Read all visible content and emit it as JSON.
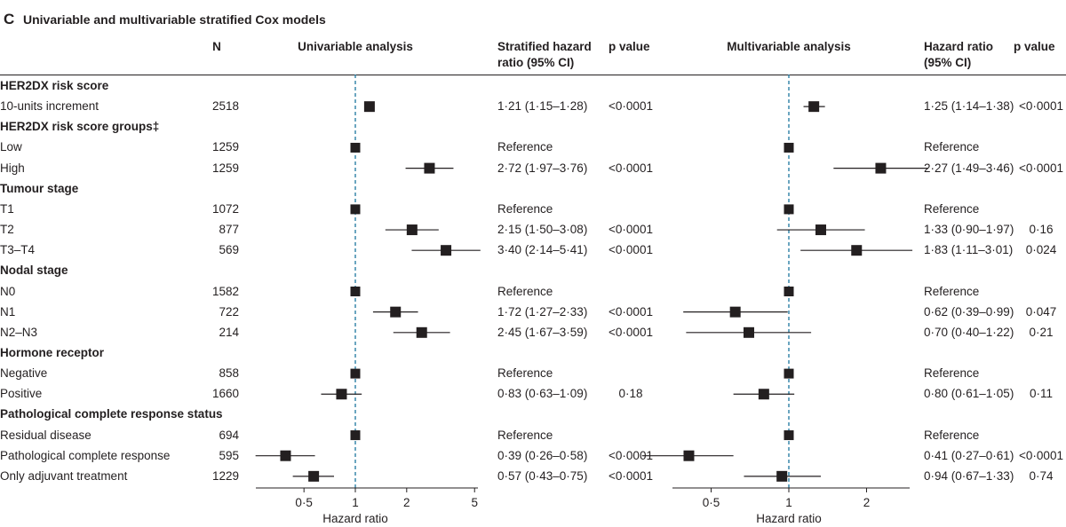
{
  "panel": {
    "letter": "C",
    "title": "Univariable and multivariable stratified Cox models"
  },
  "headers": {
    "n": "N",
    "uni_analysis": "Univariable analysis",
    "uni_hr_line1": "Stratified hazard",
    "uni_hr_line2": "ratio (95% CI)",
    "uni_p": "p value",
    "multi_analysis": "Multivariable analysis",
    "multi_hr_line1": "Hazard ratio",
    "multi_hr_line2": "(95% CI)",
    "multi_p": "p value"
  },
  "rows": [
    {
      "label": "HER2DX risk score",
      "group": true,
      "n": "",
      "uni_text": "",
      "uni_p": "",
      "multi_text": "",
      "multi_p": ""
    },
    {
      "label": "10-units increment",
      "group": false,
      "n": "2518",
      "uni_text": "1·21 (1·15–1·28)",
      "uni_p": "<0·0001",
      "multi_text": "1·25 (1·14–1·38)",
      "multi_p": "<0·0001"
    },
    {
      "label": "HER2DX risk score groups‡",
      "group": true,
      "n": "",
      "uni_text": "",
      "uni_p": "",
      "multi_text": "",
      "multi_p": ""
    },
    {
      "label": "Low",
      "group": false,
      "n": "1259",
      "uni_text": "Reference",
      "uni_p": "",
      "multi_text": "Reference",
      "multi_p": ""
    },
    {
      "label": "High",
      "group": false,
      "n": "1259",
      "uni_text": "2·72 (1·97–3·76)",
      "uni_p": "<0·0001",
      "multi_text": "2·27 (1·49–3·46)",
      "multi_p": "<0·0001"
    },
    {
      "label": "Tumour stage",
      "group": true,
      "n": "",
      "uni_text": "",
      "uni_p": "",
      "multi_text": "",
      "multi_p": ""
    },
    {
      "label": "T1",
      "group": false,
      "n": "1072",
      "uni_text": "Reference",
      "uni_p": "",
      "multi_text": "Reference",
      "multi_p": ""
    },
    {
      "label": "T2",
      "group": false,
      "n": "877",
      "uni_text": "2·15 (1·50–3·08)",
      "uni_p": "<0·0001",
      "multi_text": "1·33 (0·90–1·97)",
      "multi_p": "0·16"
    },
    {
      "label": "T3–T4",
      "group": false,
      "n": "569",
      "uni_text": "3·40 (2·14–5·41)",
      "uni_p": "<0·0001",
      "multi_text": "1·83 (1·11–3·01)",
      "multi_p": "0·024"
    },
    {
      "label": "Nodal stage",
      "group": true,
      "n": "",
      "uni_text": "",
      "uni_p": "",
      "multi_text": "",
      "multi_p": ""
    },
    {
      "label": "N0",
      "group": false,
      "n": "1582",
      "uni_text": "Reference",
      "uni_p": "",
      "multi_text": "Reference",
      "multi_p": ""
    },
    {
      "label": "N1",
      "group": false,
      "n": "722",
      "uni_text": "1·72 (1·27–2·33)",
      "uni_p": "<0·0001",
      "multi_text": "0·62 (0·39–0·99)",
      "multi_p": "0·047"
    },
    {
      "label": "N2–N3",
      "group": false,
      "n": "214",
      "uni_text": "2·45 (1·67–3·59)",
      "uni_p": "<0·0001",
      "multi_text": "0·70 (0·40–1·22)",
      "multi_p": "0·21"
    },
    {
      "label": "Hormone receptor",
      "group": true,
      "n": "",
      "uni_text": "",
      "uni_p": "",
      "multi_text": "",
      "multi_p": ""
    },
    {
      "label": "Negative",
      "group": false,
      "n": "858",
      "uni_text": "Reference",
      "uni_p": "",
      "multi_text": "Reference",
      "multi_p": ""
    },
    {
      "label": "Positive",
      "group": false,
      "n": "1660",
      "uni_text": "0·83 (0·63–1·09)",
      "uni_p": "0·18",
      "multi_text": "0·80 (0·61–1·05)",
      "multi_p": "0·11"
    },
    {
      "label": "Pathological complete response status",
      "group": true,
      "n": "",
      "uni_text": "",
      "uni_p": "",
      "multi_text": "",
      "multi_p": ""
    },
    {
      "label": "Residual disease",
      "group": false,
      "n": "694",
      "uni_text": "Reference",
      "uni_p": "",
      "multi_text": "Reference",
      "multi_p": ""
    },
    {
      "label": "Pathological complete response",
      "group": false,
      "n": "595",
      "uni_text": "0·39 (0·26–0·58)",
      "uni_p": "<0·0001",
      "multi_text": "0·41 (0·27–0·61)",
      "multi_p": "<0·0001"
    },
    {
      "label": "Only adjuvant treatment",
      "group": false,
      "n": "1229",
      "uni_text": "0·57 (0·43–0·75)",
      "uni_p": "<0·0001",
      "multi_text": "0·94 (0·67–1·33)",
      "multi_p": "0·74"
    }
  ],
  "chart_data": [
    {
      "type": "forest",
      "title": "Univariable analysis",
      "xlabel": "Hazard ratio",
      "xscale": "log",
      "xlim": [
        0.3,
        5.2
      ],
      "reference_line": 1,
      "xticks": [
        0.5,
        1,
        2,
        5
      ],
      "xtick_labels": [
        "0·5",
        "1",
        "2",
        "5"
      ],
      "points": [
        {
          "row": "10-units increment",
          "hr": 1.21,
          "lo": 1.15,
          "hi": 1.28
        },
        {
          "row": "Low",
          "hr": 1.0,
          "lo": null,
          "hi": null
        },
        {
          "row": "High",
          "hr": 2.72,
          "lo": 1.97,
          "hi": 3.76
        },
        {
          "row": "T1",
          "hr": 1.0,
          "lo": null,
          "hi": null
        },
        {
          "row": "T2",
          "hr": 2.15,
          "lo": 1.5,
          "hi": 3.08
        },
        {
          "row": "T3–T4",
          "hr": 3.4,
          "lo": 2.14,
          "hi": 5.41
        },
        {
          "row": "N0",
          "hr": 1.0,
          "lo": null,
          "hi": null
        },
        {
          "row": "N1",
          "hr": 1.72,
          "lo": 1.27,
          "hi": 2.33
        },
        {
          "row": "N2–N3",
          "hr": 2.45,
          "lo": 1.67,
          "hi": 3.59
        },
        {
          "row": "Negative",
          "hr": 1.0,
          "lo": null,
          "hi": null
        },
        {
          "row": "Positive",
          "hr": 0.83,
          "lo": 0.63,
          "hi": 1.09
        },
        {
          "row": "Residual disease",
          "hr": 1.0,
          "lo": null,
          "hi": null
        },
        {
          "row": "Pathological complete response",
          "hr": 0.39,
          "lo": 0.26,
          "hi": 0.58
        },
        {
          "row": "Only adjuvant treatment",
          "hr": 0.57,
          "lo": 0.43,
          "hi": 0.75
        }
      ]
    },
    {
      "type": "forest",
      "title": "Multivariable analysis",
      "xlabel": "Hazard ratio",
      "xscale": "log",
      "xlim": [
        0.23,
        3.4
      ],
      "reference_line": 1,
      "xticks": [
        0.5,
        1,
        2
      ],
      "xtick_labels": [
        "0·5",
        "1",
        "2"
      ],
      "points": [
        {
          "row": "10-units increment",
          "hr": 1.25,
          "lo": 1.14,
          "hi": 1.38
        },
        {
          "row": "Low",
          "hr": 1.0,
          "lo": null,
          "hi": null
        },
        {
          "row": "High",
          "hr": 2.27,
          "lo": 1.49,
          "hi": 3.46
        },
        {
          "row": "T1",
          "hr": 1.0,
          "lo": null,
          "hi": null
        },
        {
          "row": "T2",
          "hr": 1.33,
          "lo": 0.9,
          "hi": 1.97
        },
        {
          "row": "T3–T4",
          "hr": 1.83,
          "lo": 1.11,
          "hi": 3.01
        },
        {
          "row": "N0",
          "hr": 1.0,
          "lo": null,
          "hi": null
        },
        {
          "row": "N1",
          "hr": 0.62,
          "lo": 0.39,
          "hi": 0.99
        },
        {
          "row": "N2–N3",
          "hr": 0.7,
          "lo": 0.4,
          "hi": 1.22
        },
        {
          "row": "Negative",
          "hr": 1.0,
          "lo": null,
          "hi": null
        },
        {
          "row": "Positive",
          "hr": 0.8,
          "lo": 0.61,
          "hi": 1.05
        },
        {
          "row": "Residual disease",
          "hr": 1.0,
          "lo": null,
          "hi": null
        },
        {
          "row": "Pathological complete response",
          "hr": 0.41,
          "lo": 0.27,
          "hi": 0.61
        },
        {
          "row": "Only adjuvant treatment",
          "hr": 0.94,
          "lo": 0.67,
          "hi": 1.33
        }
      ]
    }
  ],
  "colors": {
    "text": "#231f20",
    "reference_line": "#2c7fa6",
    "marker": "#231f20"
  }
}
